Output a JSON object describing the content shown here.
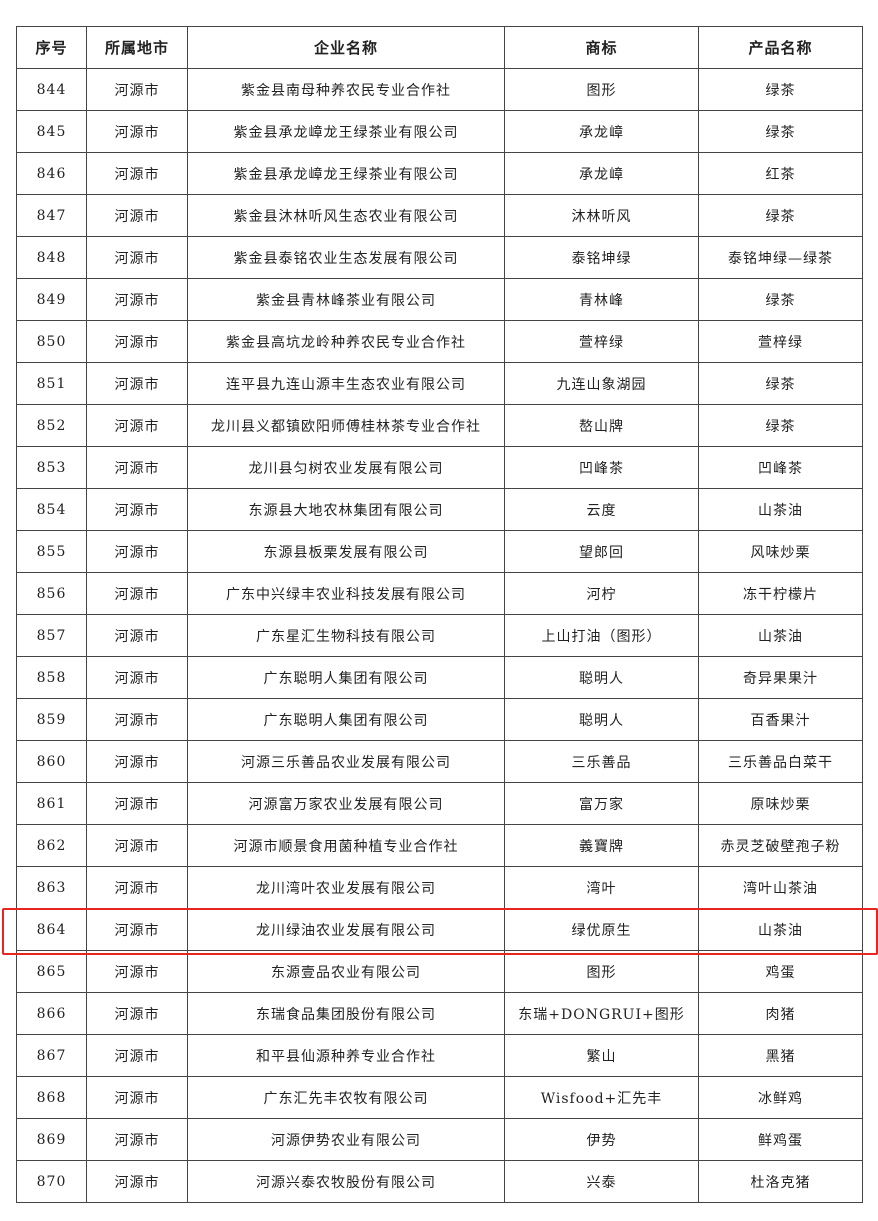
{
  "headers": [
    "序号",
    "所属地市",
    "企业名称",
    "商标",
    "产品名称"
  ],
  "rows": [
    [
      "844",
      "河源市",
      "紫金县南母种养农民专业合作社",
      "图形",
      "绿茶"
    ],
    [
      "845",
      "河源市",
      "紫金县承龙嶂龙王绿茶业有限公司",
      "承龙嶂",
      "绿茶"
    ],
    [
      "846",
      "河源市",
      "紫金县承龙嶂龙王绿茶业有限公司",
      "承龙嶂",
      "红茶"
    ],
    [
      "847",
      "河源市",
      "紫金县沐林听风生态农业有限公司",
      "沐林听风",
      "绿茶"
    ],
    [
      "848",
      "河源市",
      "紫金县泰铭农业生态发展有限公司",
      "泰铭坤绿",
      "泰铭坤绿—绿茶"
    ],
    [
      "849",
      "河源市",
      "紫金县青林峰茶业有限公司",
      "青林峰",
      "绿茶"
    ],
    [
      "850",
      "河源市",
      "紫金县高坑龙岭种养农民专业合作社",
      "萱梓绿",
      "萱梓绿"
    ],
    [
      "851",
      "河源市",
      "连平县九连山源丰生态农业有限公司",
      "九连山象湖园",
      "绿茶"
    ],
    [
      "852",
      "河源市",
      "龙川县义都镇欧阳师傅桂林茶专业合作社",
      "嶅山牌",
      "绿茶"
    ],
    [
      "853",
      "河源市",
      "龙川县匀树农业发展有限公司",
      "凹峰茶",
      "凹峰茶"
    ],
    [
      "854",
      "河源市",
      "东源县大地农林集团有限公司",
      "云度",
      "山茶油"
    ],
    [
      "855",
      "河源市",
      "东源县板栗发展有限公司",
      "望郎回",
      "风味炒栗"
    ],
    [
      "856",
      "河源市",
      "广东中兴绿丰农业科技发展有限公司",
      "河柠",
      "冻干柠檬片"
    ],
    [
      "857",
      "河源市",
      "广东星汇生物科技有限公司",
      "上山打油（图形）",
      "山茶油"
    ],
    [
      "858",
      "河源市",
      "广东聪明人集团有限公司",
      "聪明人",
      "奇异果果汁"
    ],
    [
      "859",
      "河源市",
      "广东聪明人集团有限公司",
      "聪明人",
      "百香果汁"
    ],
    [
      "860",
      "河源市",
      "河源三乐善品农业发展有限公司",
      "三乐善品",
      "三乐善品白菜干"
    ],
    [
      "861",
      "河源市",
      "河源富万家农业发展有限公司",
      "富万家",
      "原味炒栗"
    ],
    [
      "862",
      "河源市",
      "河源市顺景食用菌种植专业合作社",
      "義寶牌",
      "赤灵芝破壁孢子粉"
    ],
    [
      "863",
      "河源市",
      "龙川湾叶农业发展有限公司",
      "湾叶",
      "湾叶山茶油"
    ],
    [
      "864",
      "河源市",
      "龙川绿油农业发展有限公司",
      "绿优原生",
      "山茶油"
    ],
    [
      "865",
      "河源市",
      "东源壹品农业有限公司",
      "图形",
      "鸡蛋"
    ],
    [
      "866",
      "河源市",
      "东瑞食品集团股份有限公司",
      "东瑞+DONGRUI+图形",
      "肉猪"
    ],
    [
      "867",
      "河源市",
      "和平县仙源种养专业合作社",
      "繁山",
      "黑猪"
    ],
    [
      "868",
      "河源市",
      "广东汇先丰农牧有限公司",
      "Wisfood+汇先丰",
      "冰鲜鸡"
    ],
    [
      "869",
      "河源市",
      "河源伊势农业有限公司",
      "伊势",
      "鲜鸡蛋"
    ],
    [
      "870",
      "河源市",
      "河源兴泰农牧股份有限公司",
      "兴泰",
      "杜洛克猪"
    ]
  ],
  "highlighted_row": "864",
  "highlight_color": "#e8261f"
}
